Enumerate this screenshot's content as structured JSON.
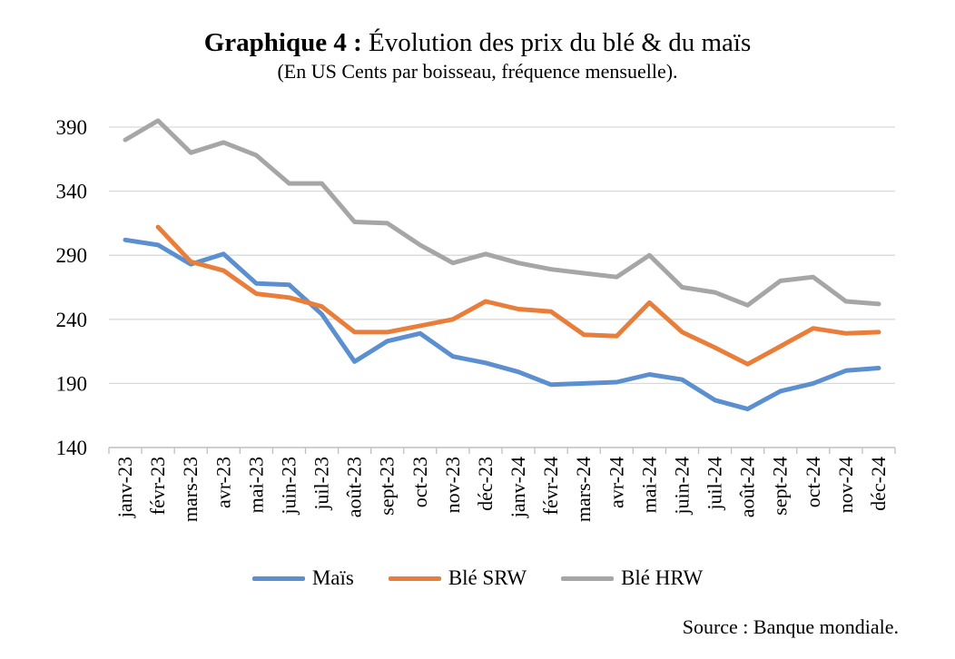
{
  "title_bold": "Graphique 4 :",
  "title_rest": "Évolution des prix du blé & du maïs",
  "subtitle": "(En US Cents par boisseau, fréquence mensuelle).",
  "source": "Source : Banque mondiale.",
  "chart_data": {
    "type": "line",
    "title": "Graphique 4 : Évolution des prix du blé & du maïs",
    "subtitle": "(En US Cents par boisseau, fréquence mensuelle).",
    "xlabel": "",
    "ylabel": "",
    "ylim": [
      140,
      390
    ],
    "yticks": [
      140,
      190,
      240,
      290,
      340,
      390
    ],
    "grid": true,
    "legend_position": "bottom",
    "categories": [
      "janv-23",
      "févr-23",
      "mars-23",
      "avr-23",
      "mai-23",
      "juin-23",
      "juil-23",
      "août-23",
      "sept-23",
      "oct-23",
      "nov-23",
      "déc-23",
      "janv-24",
      "févr-24",
      "mars-24",
      "avr-24",
      "mai-24",
      "juin-24",
      "juil-24",
      "août-24",
      "sept-24",
      "oct-24",
      "nov-24",
      "déc-24"
    ],
    "series": [
      {
        "name": "Maïs",
        "color": "#5B8FD0",
        "values": [
          302,
          298,
          283,
          291,
          268,
          267,
          244,
          207,
          223,
          229,
          211,
          206,
          199,
          189,
          190,
          191,
          197,
          193,
          177,
          170,
          184,
          190,
          200,
          202
        ]
      },
      {
        "name": "Blé SRW",
        "color": "#E97E3A",
        "values": [
          null,
          312,
          285,
          278,
          260,
          257,
          250,
          230,
          230,
          235,
          240,
          254,
          248,
          246,
          228,
          227,
          253,
          230,
          218,
          205,
          219,
          233,
          229,
          230
        ]
      },
      {
        "name": "Blé HRW",
        "color": "#A6A6A6",
        "values": [
          380,
          395,
          370,
          378,
          368,
          346,
          346,
          316,
          315,
          298,
          284,
          291,
          284,
          279,
          276,
          273,
          290,
          265,
          261,
          251,
          270,
          273,
          254,
          252
        ]
      }
    ]
  }
}
